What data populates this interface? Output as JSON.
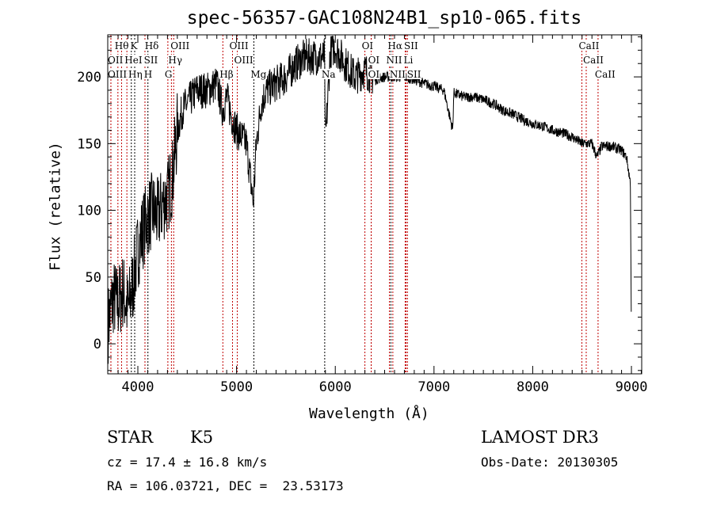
{
  "chart_data": {
    "type": "line",
    "title": "spec-56357-GAC108N24B1_sp10-065.fits",
    "xlabel": "Wavelength (Å)",
    "ylabel": "Flux (relative)",
    "xlim": [
      3695,
      9104
    ],
    "ylim": [
      -22.5,
      231.5
    ],
    "xticks": [
      4000,
      5000,
      6000,
      7000,
      8000,
      9000
    ],
    "yticks": [
      0,
      50,
      100,
      150,
      200
    ],
    "grid": false,
    "series": [
      {
        "name": "spectrum",
        "x": [
          3700,
          3750,
          3800,
          3850,
          3900,
          3950,
          4000,
          4050,
          4100,
          4150,
          4200,
          4250,
          4300,
          4350,
          4400,
          4450,
          4500,
          4600,
          4700,
          4800,
          4860,
          4900,
          4950,
          5000,
          5100,
          5170,
          5200,
          5250,
          5300,
          5400,
          5500,
          5600,
          5700,
          5800,
          5890,
          5900,
          5950,
          6000,
          6100,
          6200,
          6300,
          6400,
          6500,
          6600,
          6700,
          6800,
          6900,
          7000,
          7100,
          7190,
          7200,
          7300,
          7400,
          7500,
          7600,
          7700,
          7800,
          7900,
          8000,
          8100,
          8200,
          8300,
          8400,
          8500,
          8600,
          8650,
          8700,
          8800,
          8900,
          8950,
          8990,
          9000
        ],
        "y": [
          15,
          35,
          30,
          40,
          25,
          45,
          70,
          85,
          95,
          100,
          95,
          105,
          110,
          125,
          160,
          175,
          180,
          190,
          190,
          195,
          175,
          185,
          170,
          160,
          150,
          105,
          150,
          180,
          190,
          195,
          200,
          210,
          215,
          215,
          215,
          150,
          220,
          222,
          210,
          200,
          205,
          198,
          200,
          200,
          200,
          198,
          195,
          193,
          190,
          160,
          188,
          185,
          185,
          183,
          180,
          175,
          172,
          168,
          165,
          163,
          160,
          158,
          155,
          150,
          150,
          140,
          148,
          148,
          145,
          140,
          120,
          0
        ]
      }
    ],
    "lines": [
      {
        "label": "Hθ",
        "wave": 3798,
        "row": 0,
        "color": "#c00000"
      },
      {
        "label": "K",
        "wave": 3934,
        "row": 0,
        "color": "#000000"
      },
      {
        "label": "Hδ",
        "wave": 4102,
        "row": 0,
        "color": "#000000"
      },
      {
        "label": "OIII",
        "wave": 4363,
        "row": 0,
        "color": "#c00000"
      },
      {
        "label": "OIII",
        "wave": 4959,
        "row": 0,
        "color": "#c00000"
      },
      {
        "label": "OI",
        "wave": 6300,
        "row": 0,
        "color": "#c00000"
      },
      {
        "label": "Hα",
        "wave": 6563,
        "row": 0,
        "color": "#000000"
      },
      {
        "label": "SII",
        "wave": 6717,
        "row": 0,
        "color": "#c00000"
      },
      {
        "label": "CaII",
        "wave": 8498,
        "row": 0,
        "color": "#c00000"
      },
      {
        "label": "OII",
        "wave": 3727,
        "row": 1,
        "color": "#c00000"
      },
      {
        "label": "HeI",
        "wave": 3889,
        "row": 1,
        "color": "#c00000"
      },
      {
        "label": "SII",
        "wave": 4072,
        "row": 1,
        "color": "#c00000"
      },
      {
        "label": "Hγ",
        "wave": 4340,
        "row": 1,
        "color": "#c00000"
      },
      {
        "label": "OIII",
        "wave": 5007,
        "row": 1,
        "color": "#c00000"
      },
      {
        "label": "OI",
        "wave": 6364,
        "row": 1,
        "color": "#c00000"
      },
      {
        "label": "NII",
        "wave": 6548,
        "row": 1,
        "color": "#c00000"
      },
      {
        "label": "Li",
        "wave": 6708,
        "row": 1,
        "color": "#c00000"
      },
      {
        "label": "CaII",
        "wave": 8542,
        "row": 1,
        "color": "#c00000"
      },
      {
        "label": "OIII",
        "wave": 3727,
        "row": 2,
        "color": "#c00000"
      },
      {
        "label": "Hη",
        "wave": 3835,
        "row": 2,
        "color": "#c00000"
      },
      {
        "label": "H",
        "wave": 3968,
        "row": 2,
        "color": "#000000"
      },
      {
        "label": "G",
        "wave": 4304,
        "row": 2,
        "color": "#c00000"
      },
      {
        "label": "Hβ",
        "wave": 4861,
        "row": 2,
        "color": "#c00000"
      },
      {
        "label": "Mg",
        "wave": 5175,
        "row": 2,
        "color": "#000000"
      },
      {
        "label": "Na",
        "wave": 5893,
        "row": 2,
        "color": "#000000"
      },
      {
        "label": "OI",
        "wave": 6364,
        "row": 2,
        "color": "#c00000"
      },
      {
        "label": "NII",
        "wave": 6583,
        "row": 2,
        "color": "#c00000"
      },
      {
        "label": "SII",
        "wave": 6731,
        "row": 2,
        "color": "#c00000"
      },
      {
        "label": "CaII",
        "wave": 8662,
        "row": 2,
        "color": "#c00000"
      }
    ]
  },
  "info": {
    "class": "STAR",
    "subclass": "K5",
    "survey": "LAMOST DR3",
    "cz": "cz = 17.4 ± 16.8 km/s",
    "obsdate": "Obs-Date: 20130305",
    "coords": "RA = 106.03721, DEC =  23.53173"
  }
}
